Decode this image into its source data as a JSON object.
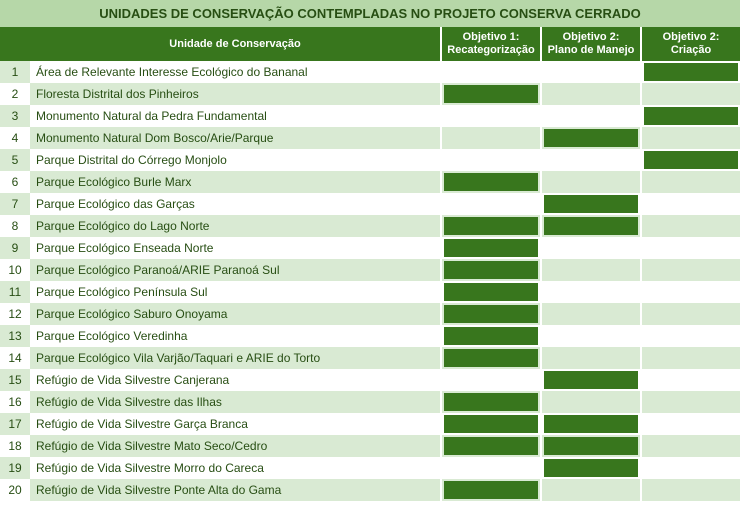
{
  "title": "UNIDADES DE CONSERVAÇÃO CONTEMPLADAS NO PROJETO CONSERVA CERRADO",
  "colors": {
    "title_bg": "#b6d7a8",
    "header_bg": "#38761d",
    "header_text": "#ffffff",
    "row_even_bg": "#ffffff",
    "row_odd_bg": "#d9ead3",
    "num_even_bg": "#d9ead3",
    "num_odd_bg": "#ffffff",
    "fill_color": "#38761d",
    "text_color": "#274e13",
    "title_text": "#274e13"
  },
  "headers": {
    "unit": "Unidade de Conservação",
    "obj1_line1": "Objetivo 1:",
    "obj1_line2": "Recategorização",
    "obj2a_line1": "Objetivo 2:",
    "obj2a_line2": "Plano de Manejo",
    "obj2b_line1": "Objetivo 2:",
    "obj2b_line2": "Criação"
  },
  "rows": [
    {
      "n": "1",
      "name": "Área de Relevante Interesse Ecológico do Bananal",
      "o1": false,
      "o2a": false,
      "o2b": true
    },
    {
      "n": "2",
      "name": "Floresta Distrital dos Pinheiros",
      "o1": true,
      "o2a": false,
      "o2b": false
    },
    {
      "n": "3",
      "name": "Monumento Natural da Pedra Fundamental",
      "o1": false,
      "o2a": false,
      "o2b": true
    },
    {
      "n": "4",
      "name": "Monumento Natural Dom Bosco/Arie/Parque",
      "o1": false,
      "o2a": true,
      "o2b": false
    },
    {
      "n": "5",
      "name": "Parque Distrital do Córrego Monjolo",
      "o1": false,
      "o2a": false,
      "o2b": true
    },
    {
      "n": "6",
      "name": "Parque Ecológico Burle Marx",
      "o1": true,
      "o2a": false,
      "o2b": false
    },
    {
      "n": "7",
      "name": "Parque Ecológico das Garças",
      "o1": false,
      "o2a": true,
      "o2b": false
    },
    {
      "n": "8",
      "name": "Parque Ecológico do Lago Norte",
      "o1": true,
      "o2a": true,
      "o2b": false
    },
    {
      "n": "9",
      "name": "Parque Ecológico Enseada Norte",
      "o1": true,
      "o2a": false,
      "o2b": false
    },
    {
      "n": "10",
      "name": "Parque Ecológico Paranoá/ARIE Paranoá Sul",
      "o1": true,
      "o2a": false,
      "o2b": false
    },
    {
      "n": "11",
      "name": "Parque Ecológico Península Sul",
      "o1": true,
      "o2a": false,
      "o2b": false
    },
    {
      "n": "12",
      "name": "Parque Ecológico Saburo Onoyama",
      "o1": true,
      "o2a": false,
      "o2b": false
    },
    {
      "n": "13",
      "name": "Parque Ecológico Veredinha",
      "o1": true,
      "o2a": false,
      "o2b": false
    },
    {
      "n": "14",
      "name": "Parque Ecológico Vila Varjão/Taquari e ARIE do Torto",
      "o1": true,
      "o2a": false,
      "o2b": false
    },
    {
      "n": "15",
      "name": "Refúgio de Vida Silvestre Canjerana",
      "o1": false,
      "o2a": true,
      "o2b": false
    },
    {
      "n": "16",
      "name": "Refúgio de Vida Silvestre das Ilhas",
      "o1": true,
      "o2a": false,
      "o2b": false
    },
    {
      "n": "17",
      "name": "Refúgio de Vida Silvestre Garça Branca",
      "o1": true,
      "o2a": true,
      "o2b": false
    },
    {
      "n": "18",
      "name": "Refúgio de Vida Silvestre Mato Seco/Cedro",
      "o1": true,
      "o2a": true,
      "o2b": false
    },
    {
      "n": "19",
      "name": "Refúgio de Vida Silvestre Morro do Careca",
      "o1": false,
      "o2a": true,
      "o2b": false
    },
    {
      "n": "20",
      "name": "Refúgio de Vida Silvestre Ponte Alta do Gama",
      "o1": true,
      "o2a": false,
      "o2b": false
    }
  ]
}
